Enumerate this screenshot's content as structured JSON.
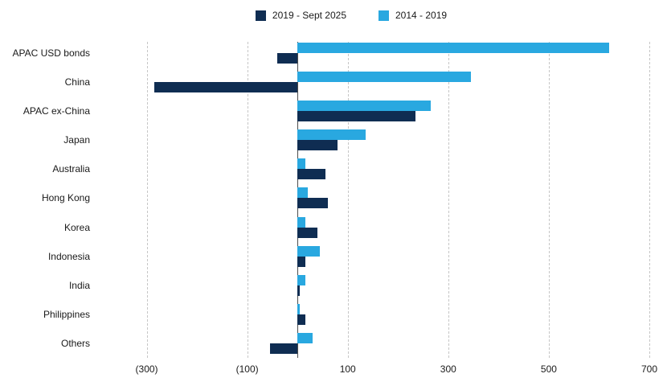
{
  "chart_data": {
    "type": "bar",
    "orientation": "horizontal",
    "title": "",
    "categories": [
      "APAC USD bonds",
      "China",
      "APAC ex-China",
      "Japan",
      "Australia",
      "Hong Kong",
      "Korea",
      "Indonesia",
      "India",
      "Philippines",
      "Others"
    ],
    "series": [
      {
        "name": "2019 - Sept 2025",
        "color": "#0f2d52",
        "values": [
          -40,
          -285,
          235,
          80,
          55,
          60,
          40,
          15,
          5,
          15,
          -55
        ]
      },
      {
        "name": "2014 - 2019",
        "color": "#29a8e0",
        "values": [
          620,
          345,
          265,
          135,
          15,
          20,
          15,
          45,
          15,
          5,
          30
        ]
      }
    ],
    "x_ticks": [
      -300,
      -100,
      100,
      300,
      500,
      700
    ],
    "x_tick_labels": [
      "(300)",
      "(100)",
      "100",
      "300",
      "500",
      "700"
    ],
    "xlim": [
      -400,
      700
    ],
    "grid": "vertical-dashed",
    "legend_position": "top-center",
    "colors": {
      "gridline": "#c6c6c6",
      "zero_line": "#4d4d4d",
      "text": "#1a1a1a",
      "background": "#ffffff"
    }
  }
}
